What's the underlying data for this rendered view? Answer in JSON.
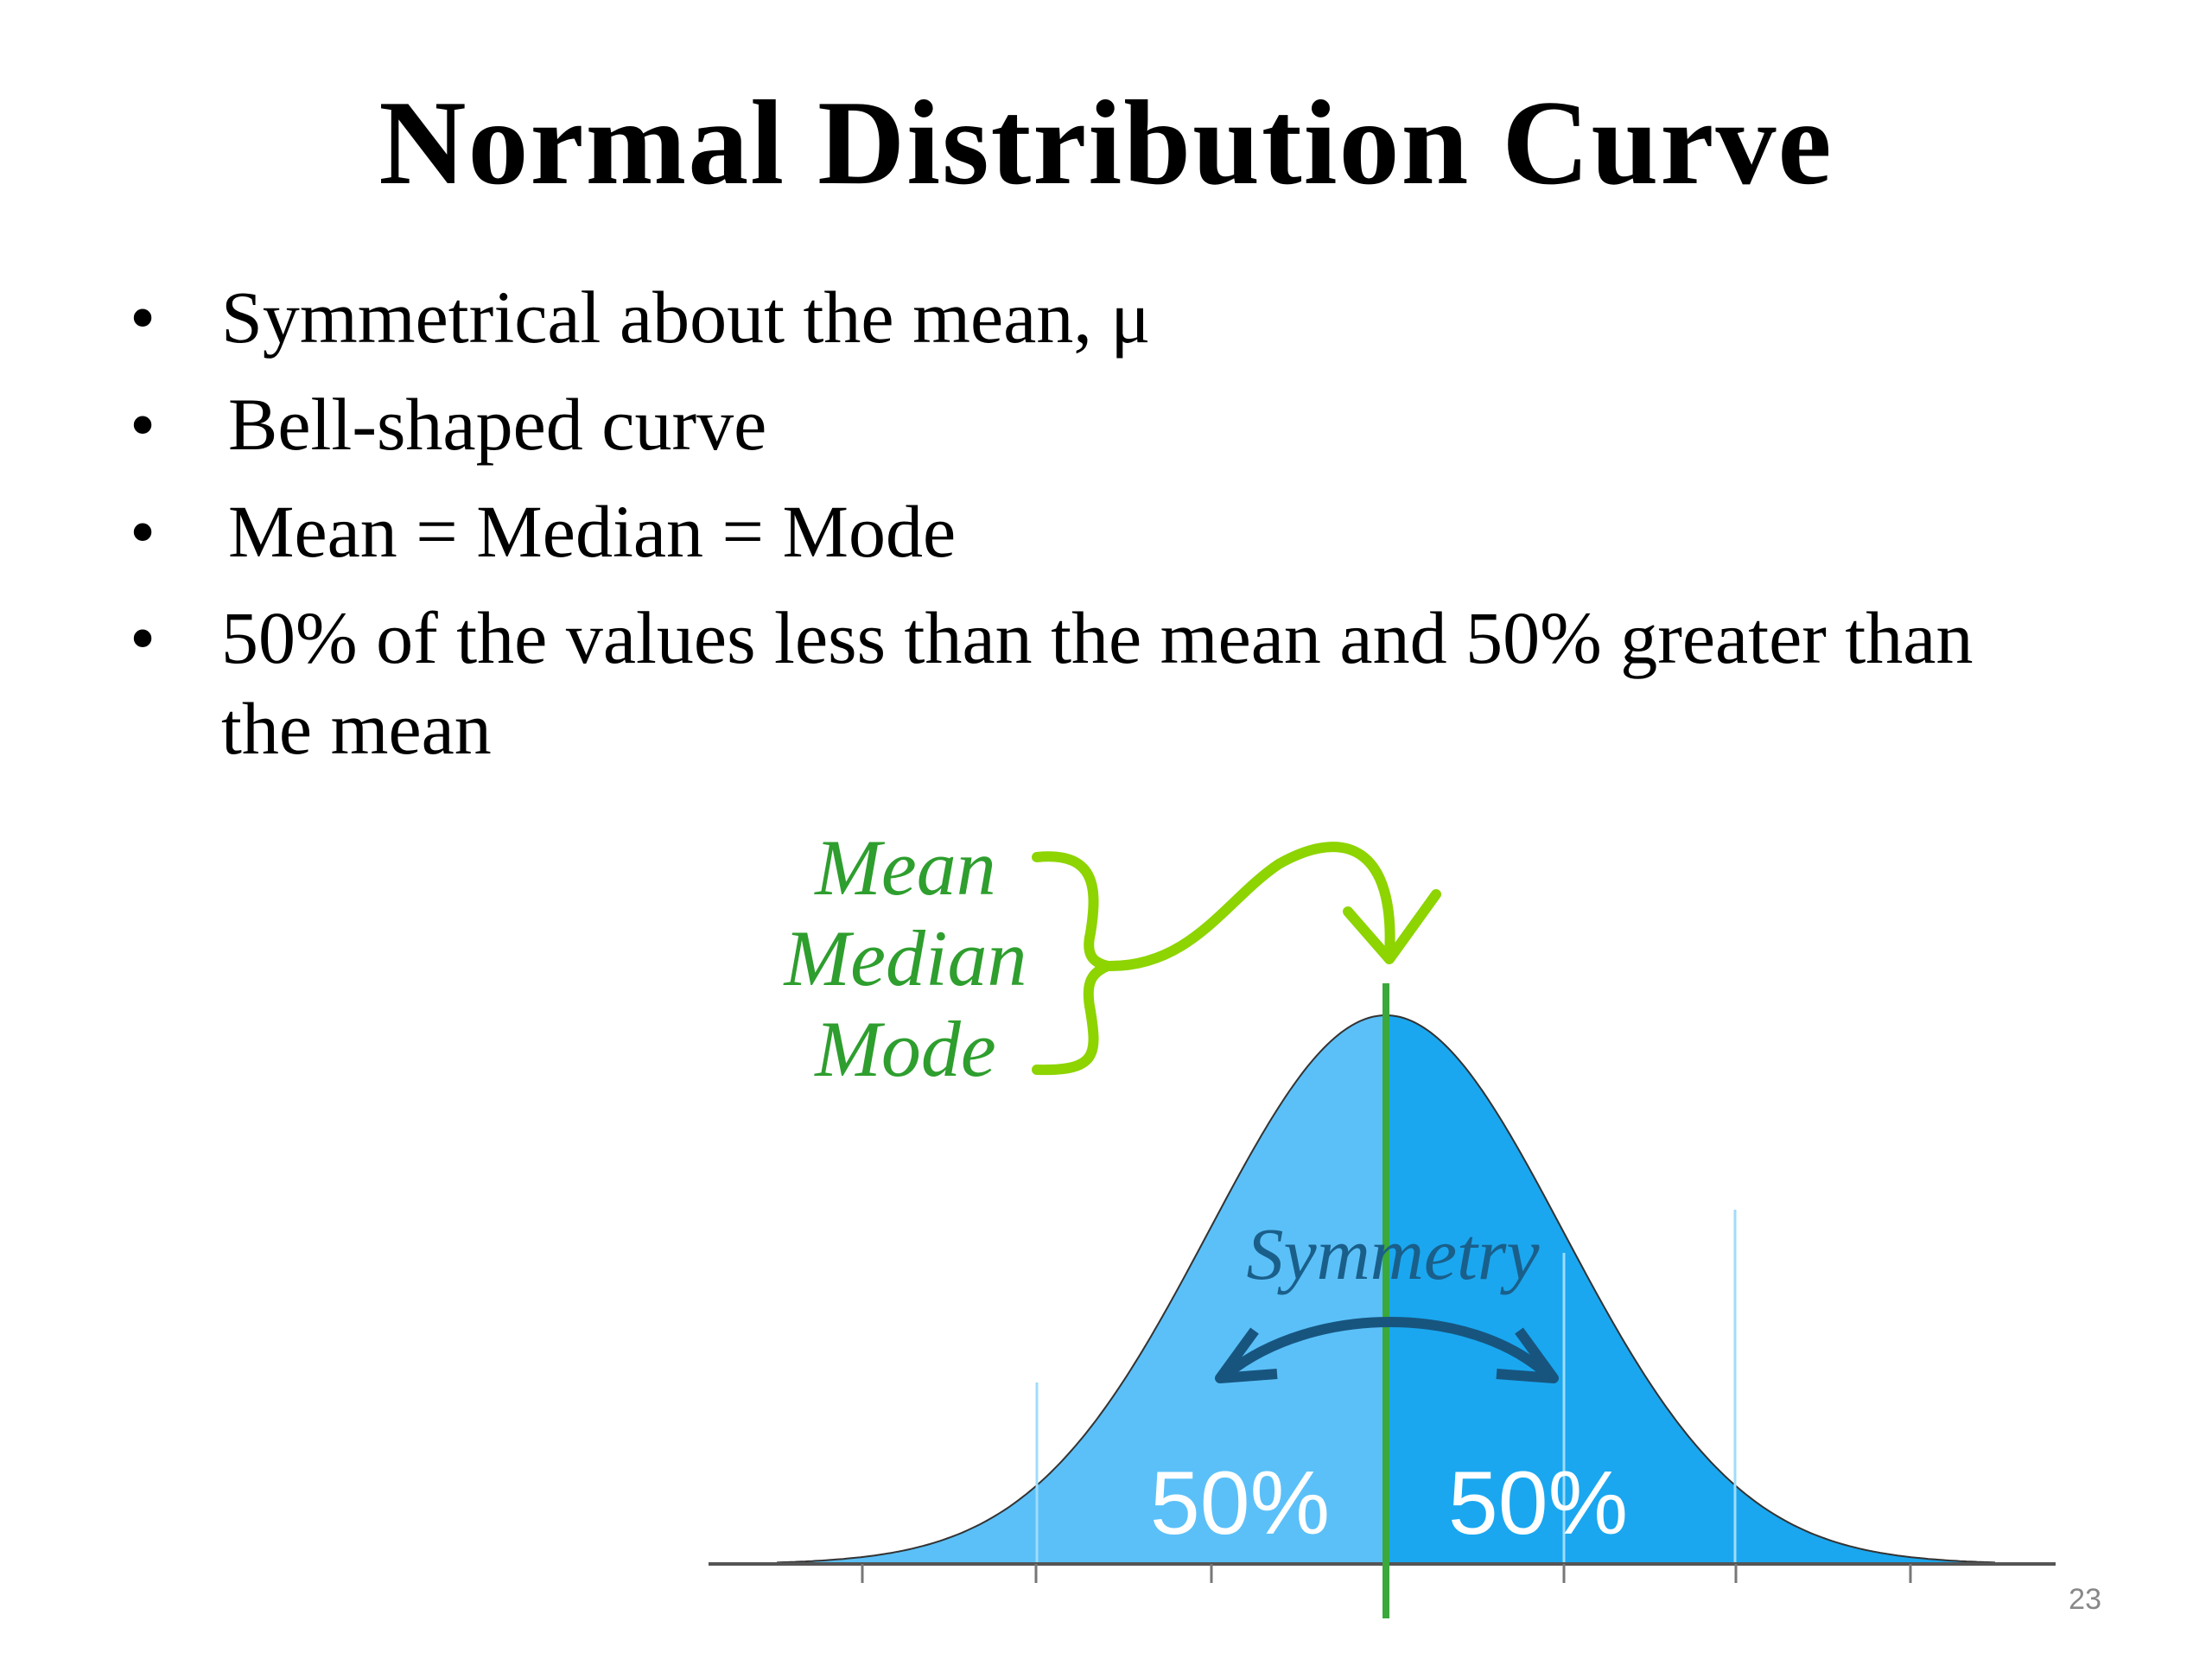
{
  "header": {
    "title": "Normal Distribution Curve"
  },
  "bullets": [
    "Symmetrical about the mean, μ",
    "Bell-shaped curve",
    "Mean = Median = Mode",
    "50% of the values less than the mean and 50% greater than the mean"
  ],
  "diagram": {
    "labels": [
      "Mean",
      "Median",
      "Mode"
    ],
    "symmetry": "Symmetry",
    "left_share": "50%",
    "right_share": "50%"
  },
  "footer": {
    "page_number": "23"
  }
}
